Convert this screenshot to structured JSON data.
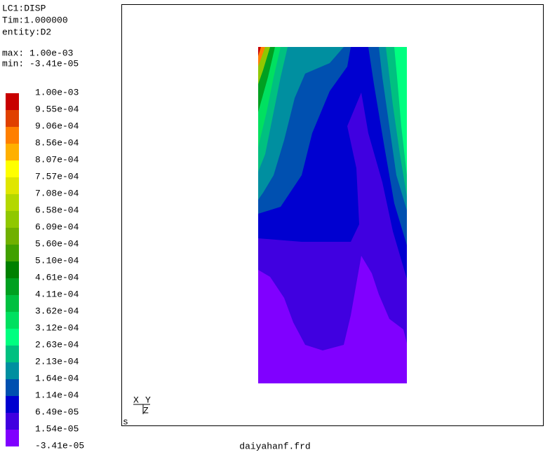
{
  "header": {
    "lines": [
      "LC1:DISP",
      "Tim:1.000000",
      "entity:D2"
    ],
    "max": "max: 1.00e-03",
    "min": "min: -3.41e-05"
  },
  "legend": {
    "labels": [
      "1.00e-03",
      "9.55e-04",
      "9.06e-04",
      "8.56e-04",
      "8.07e-04",
      "7.57e-04",
      "7.08e-04",
      "6.58e-04",
      "6.09e-04",
      "5.60e-04",
      "5.10e-04",
      "4.61e-04",
      "4.11e-04",
      "3.62e-04",
      "3.12e-04",
      "2.63e-04",
      "2.13e-04",
      "1.64e-04",
      "1.14e-04",
      "6.49e-05",
      "1.54e-05",
      "-3.41e-05"
    ],
    "colors": [
      "#c80000",
      "#e04000",
      "#ff7f00",
      "#ffb000",
      "#ffff00",
      "#e0e600",
      "#b4d800",
      "#90c800",
      "#70b000",
      "#40a000",
      "#008000",
      "#00a020",
      "#00c040",
      "#00e060",
      "#00ff80",
      "#00c080",
      "#008fa0",
      "#0050b0",
      "#0000d0",
      "#4000e0",
      "#8000ff"
    ]
  },
  "triad": {
    "x": "X",
    "y": "Y",
    "z": "Z"
  },
  "view_mode": "s",
  "filename": "daiyahanf.frd"
}
